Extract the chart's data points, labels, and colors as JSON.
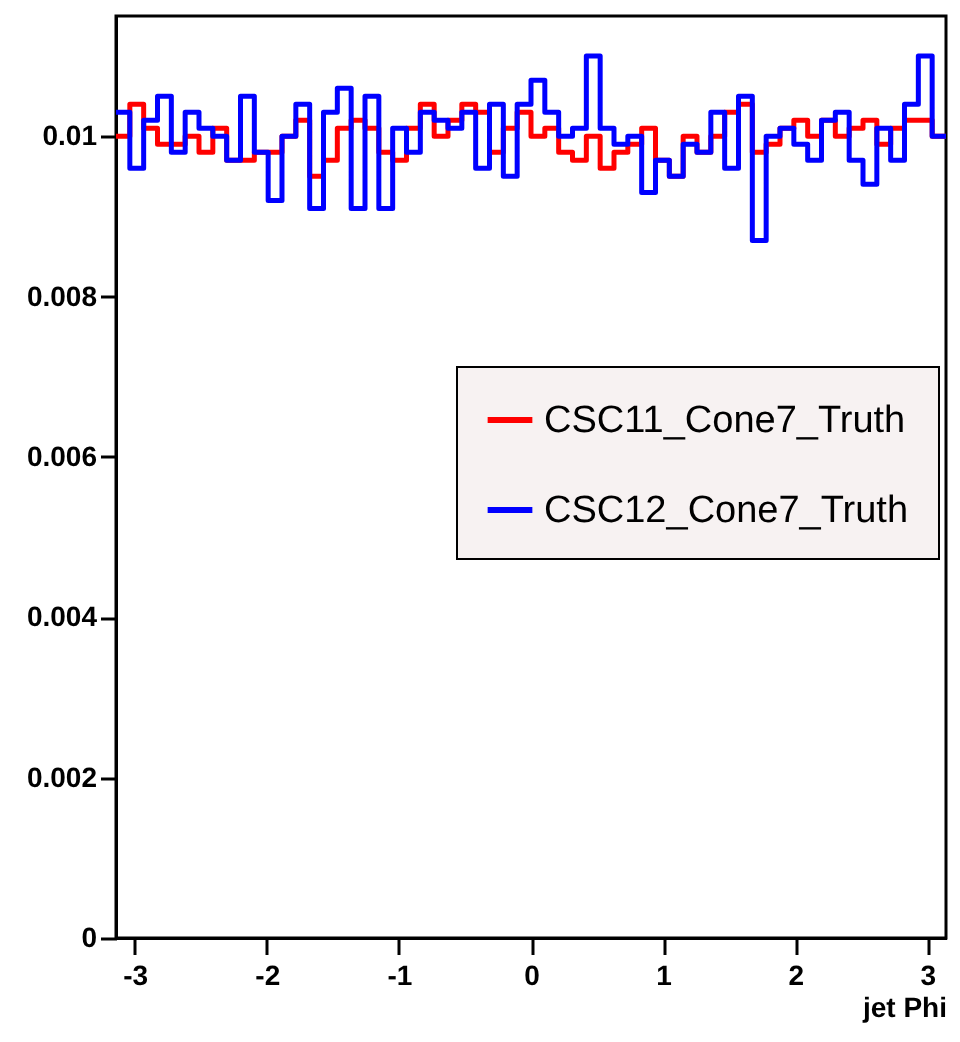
{
  "chart_data": {
    "type": "histogram",
    "xlabel": "jet Phi",
    "bins": [
      -3.1416,
      -3.0369,
      -2.9322,
      -2.8274,
      -2.7227,
      -2.618,
      -2.5133,
      -2.4086,
      -2.3038,
      -2.1991,
      -2.0944,
      -1.9897,
      -1.885,
      -1.7802,
      -1.6755,
      -1.5708,
      -1.4661,
      -1.3614,
      -1.2566,
      -1.1519,
      -1.0472,
      -0.9425,
      -0.8378,
      -0.733,
      -0.6283,
      -0.5236,
      -0.4189,
      -0.3142,
      -0.2094,
      -0.1047,
      0,
      0.1047,
      0.2094,
      0.3142,
      0.4189,
      0.5236,
      0.6283,
      0.733,
      0.8378,
      0.9425,
      1.0472,
      1.1519,
      1.2566,
      1.3614,
      1.4661,
      1.5708,
      1.6755,
      1.7802,
      1.885,
      1.9897,
      2.0944,
      2.1991,
      2.3038,
      2.4086,
      2.5133,
      2.618,
      2.7227,
      2.8274,
      2.9322,
      3.0369,
      3.1416
    ],
    "series": [
      {
        "name": "CSC11_Cone7_Truth",
        "color": "#ff0000",
        "values": [
          0.01,
          0.0104,
          0.0101,
          0.0099,
          0.0099,
          0.01,
          0.0098,
          0.0101,
          0.0097,
          0.0097,
          0.0098,
          0.0098,
          0.01,
          0.0102,
          0.0095,
          0.0097,
          0.0101,
          0.0102,
          0.0101,
          0.0098,
          0.0097,
          0.0101,
          0.0104,
          0.01,
          0.0102,
          0.0104,
          0.0103,
          0.0098,
          0.0101,
          0.0103,
          0.01,
          0.0101,
          0.0098,
          0.0097,
          0.01,
          0.0096,
          0.0098,
          0.0099,
          0.0101,
          0.0097,
          0.0095,
          0.01,
          0.0098,
          0.01,
          0.0103,
          0.0104,
          0.0098,
          0.0099,
          0.0101,
          0.0102,
          0.01,
          0.0102,
          0.01,
          0.0101,
          0.0102,
          0.0099,
          0.0101,
          0.0102,
          0.0102,
          0.01
        ]
      },
      {
        "name": "CSC12_Cone7_Truth",
        "color": "#0000ff",
        "values": [
          0.0103,
          0.0096,
          0.0102,
          0.0105,
          0.0098,
          0.0103,
          0.0101,
          0.01,
          0.0097,
          0.0105,
          0.0098,
          0.0092,
          0.01,
          0.0104,
          0.0091,
          0.0103,
          0.0106,
          0.0091,
          0.0105,
          0.0091,
          0.0101,
          0.0098,
          0.0103,
          0.0102,
          0.0101,
          0.0103,
          0.0096,
          0.0104,
          0.0095,
          0.0104,
          0.0107,
          0.0103,
          0.01,
          0.0101,
          0.011,
          0.0101,
          0.0099,
          0.01,
          0.0093,
          0.0097,
          0.0095,
          0.0099,
          0.0098,
          0.0103,
          0.0096,
          0.0105,
          0.0087,
          0.01,
          0.0101,
          0.0099,
          0.0097,
          0.0102,
          0.0103,
          0.0097,
          0.0094,
          0.0101,
          0.0097,
          0.0104,
          0.011,
          0.01
        ]
      }
    ],
    "xlim": [
      -3.1416,
      3.1416
    ],
    "xticks": [
      -3,
      -2,
      -1,
      0,
      1,
      2,
      3
    ],
    "ylim": [
      0,
      0.0115
    ],
    "yticks": [
      0,
      0.002,
      0.004,
      0.006,
      0.008,
      0.01
    ],
    "grid": false,
    "legend": "right",
    "line_style": "solid"
  }
}
